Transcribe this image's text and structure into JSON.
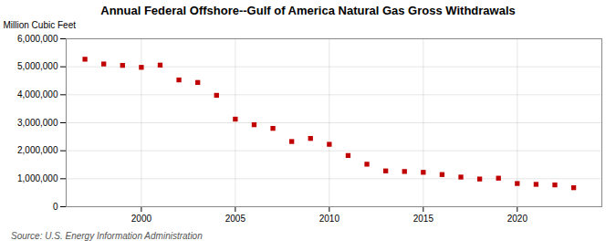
{
  "chart_data": {
    "type": "scatter",
    "title": "Annual Federal Offshore--Gulf of America Natural Gas Gross Withdrawals",
    "ylabel": "Million Cubic Feet",
    "annotations": [
      "Source: U.S. Energy Information Administration"
    ],
    "x": [
      1997,
      1998,
      1999,
      2000,
      2001,
      2002,
      2003,
      2004,
      2005,
      2006,
      2007,
      2008,
      2009,
      2010,
      2011,
      2012,
      2013,
      2014,
      2015,
      2016,
      2017,
      2018,
      2019,
      2020,
      2021,
      2022,
      2023
    ],
    "values": [
      5270000,
      5100000,
      5050000,
      4980000,
      5060000,
      4530000,
      4440000,
      3980000,
      3130000,
      2930000,
      2800000,
      2330000,
      2440000,
      2230000,
      1830000,
      1520000,
      1280000,
      1260000,
      1230000,
      1150000,
      1060000,
      990000,
      1020000,
      830000,
      800000,
      780000,
      680000
    ],
    "color": "#C00000",
    "marker": "square",
    "xlim": [
      1996,
      2024.5
    ],
    "ylim": [
      0,
      6000000
    ],
    "xticks": [
      2000,
      2005,
      2010,
      2015,
      2020
    ],
    "yticks": [
      0,
      {
        "value": 1000000,
        "label": "1,000,000"
      },
      {
        "value": 2000000,
        "label": "2,000,000"
      },
      {
        "value": 3000000,
        "label": "3,000,000"
      },
      {
        "value": 4000000,
        "label": "4,000,000"
      },
      {
        "value": 5000000,
        "label": "5,000,000"
      },
      {
        "value": 6000000,
        "label": "6,000,000"
      }
    ],
    "grid": true
  }
}
